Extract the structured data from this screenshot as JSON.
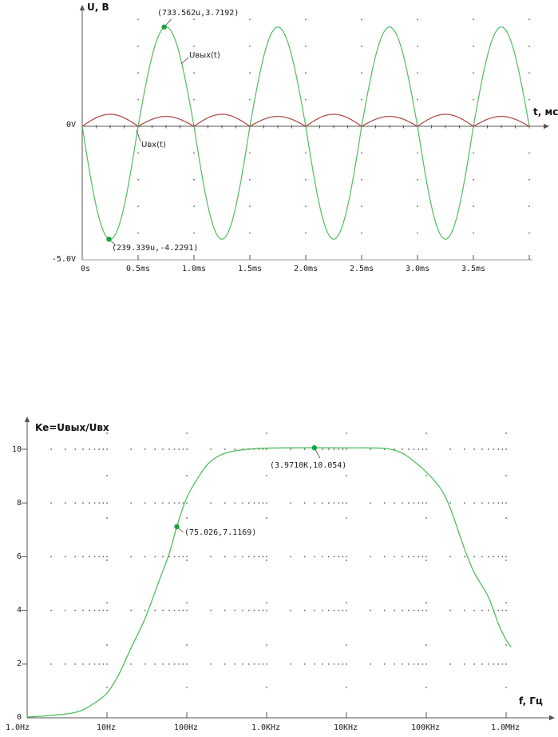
{
  "colors": {
    "green_curve": "#50be5f",
    "green_marker": "#16a33c",
    "red_curve": "#aa4641",
    "axis": "#555555",
    "scale_line": "#999999",
    "grid_dot": "#5a5a5a",
    "text": "#1b1b1b"
  },
  "chart_data": [
    {
      "id": "time-domain-plot",
      "type": "line",
      "ylabel": "U, B",
      "xlabel": "t, мс",
      "y_axis_labels": [
        "0V",
        "-5.0V"
      ],
      "x_ticks": [
        "0s",
        "0.5ms",
        "1.0ms",
        "1.5ms",
        "2.0ms",
        "2.5ms",
        "3.0ms",
        "3.5ms"
      ],
      "x_tick_values_ms": [
        0,
        0.5,
        1.0,
        1.5,
        2.0,
        2.5,
        3.0,
        3.5
      ],
      "xlim_ms": [
        0,
        4.0
      ],
      "grid": "dotted intersections every 0.5ms x 1V",
      "series": [
        {
          "label": "Uвых(t)",
          "color_key": "green_curve",
          "kind": "sine",
          "period_ms": 1.0,
          "inverted": true,
          "max_v": 3.7192,
          "min_v": -4.2291,
          "t_end_ms": 4.0
        },
        {
          "label": "Uвх(t)",
          "color_key": "red_curve",
          "kind": "sine",
          "period_ms": 1.0,
          "inverted": false,
          "max_v": 0.45,
          "min_v": -0.37,
          "t_end_ms": 4.0
        }
      ],
      "annotations": [
        {
          "label": "(733.562u,3.7192)",
          "t_ms": 0.733562,
          "v": 3.7192
        },
        {
          "label": "(239.339u,-4.2291)",
          "t_ms": 0.239339,
          "v": -4.2291
        }
      ]
    },
    {
      "id": "frequency-response-plot",
      "type": "line",
      "ylabel": "Ke=Uвых/Uвх",
      "xlabel": "f, Гц",
      "x_scale": "log",
      "x_ticks": [
        "1.0Hz",
        "10Hz",
        "100Hz",
        "1.0KHz",
        "10KHz",
        "100KHz",
        "1.0MHz"
      ],
      "x_tick_values_hz": [
        1,
        10,
        100,
        1000,
        10000,
        100000,
        1000000
      ],
      "y_tick_labels": [
        "10",
        "8",
        "6",
        "4",
        "2",
        "0"
      ],
      "y_tick_values": [
        10,
        8,
        6,
        4,
        2,
        0
      ],
      "ylim": [
        0,
        10.8
      ],
      "grid": "dotted: minor-log columns on even horizontals, decade verticals",
      "points": [
        [
          1,
          0.03
        ],
        [
          1.5,
          0.06
        ],
        [
          2,
          0.09
        ],
        [
          3,
          0.14
        ],
        [
          4,
          0.2
        ],
        [
          5,
          0.3
        ],
        [
          7,
          0.55
        ],
        [
          10,
          0.92
        ],
        [
          14,
          1.6
        ],
        [
          20,
          2.6
        ],
        [
          30,
          3.7
        ],
        [
          45,
          5.1
        ],
        [
          60,
          6.1
        ],
        [
          75.026,
          7.1169
        ],
        [
          100,
          8.2
        ],
        [
          150,
          9.1
        ],
        [
          200,
          9.55
        ],
        [
          300,
          9.85
        ],
        [
          500,
          9.98
        ],
        [
          1000,
          10.04
        ],
        [
          3971,
          10.054
        ],
        [
          10000,
          10.05
        ],
        [
          30000,
          10.03
        ],
        [
          50000,
          9.85
        ],
        [
          70000,
          9.55
        ],
        [
          100000,
          9.15
        ],
        [
          150000,
          8.55
        ],
        [
          200000,
          7.8
        ],
        [
          300000,
          6.3
        ],
        [
          400000,
          5.4
        ],
        [
          600000,
          4.5
        ],
        [
          800000,
          3.5
        ],
        [
          1000000,
          2.9
        ],
        [
          1150000,
          2.65
        ]
      ],
      "annotations": [
        {
          "label": "(75.026,7.1169)",
          "f_hz": 75.026,
          "v": 7.1169
        },
        {
          "label": "(3.9710K,10.054)",
          "f_hz": 3971,
          "v": 10.054
        }
      ]
    }
  ]
}
